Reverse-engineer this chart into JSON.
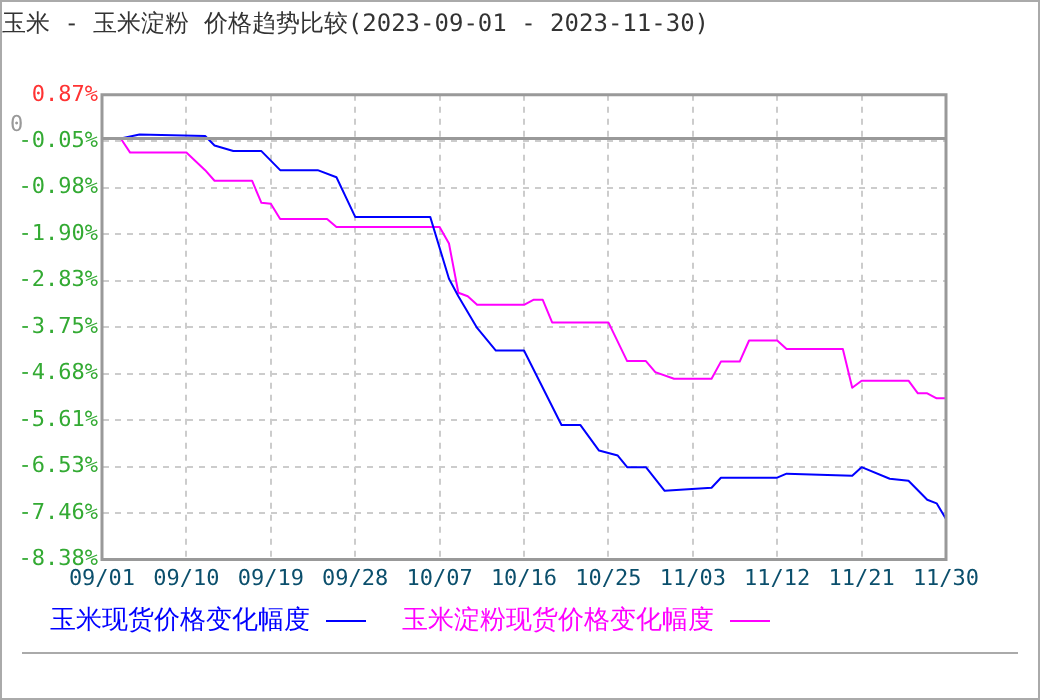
{
  "chart_data": {
    "type": "line",
    "title": "玉米 - 玉米淀粉 价格趋势比较(2023-09-01 - 2023-11-30)",
    "series": [
      {
        "name": "玉米现货价格变化幅度",
        "color": "#0000ff",
        "x": [
          "2023-09-01",
          "2023-09-03",
          "2023-09-05",
          "2023-09-12",
          "2023-09-13",
          "2023-09-15",
          "2023-09-18",
          "2023-09-20",
          "2023-09-24",
          "2023-09-26",
          "2023-09-28",
          "2023-10-06",
          "2023-10-08",
          "2023-10-09",
          "2023-10-11",
          "2023-10-13",
          "2023-10-16",
          "2023-10-20",
          "2023-10-22",
          "2023-10-24",
          "2023-10-26",
          "2023-10-27",
          "2023-10-29",
          "2023-10-31",
          "2023-11-05",
          "2023-11-06",
          "2023-11-12",
          "2023-11-13",
          "2023-11-20",
          "2023-11-21",
          "2023-11-24",
          "2023-11-26",
          "2023-11-28",
          "2023-11-29",
          "2023-11-30"
        ],
        "values": [
          0,
          0,
          0.08,
          0.05,
          -0.14,
          -0.25,
          -0.25,
          -0.63,
          -0.63,
          -0.77,
          -1.56,
          -1.56,
          -2.79,
          -3.14,
          -3.77,
          -4.22,
          -4.22,
          -5.7,
          -5.7,
          -6.21,
          -6.31,
          -6.54,
          -6.54,
          -7.01,
          -6.95,
          -6.75,
          -6.75,
          -6.67,
          -6.71,
          -6.54,
          -6.77,
          -6.81,
          -7.19,
          -7.26,
          -7.57
        ]
      },
      {
        "name": "玉米淀粉现货价格变化幅度",
        "color": "#ff00ff",
        "x": [
          "2023-09-01",
          "2023-09-03",
          "2023-09-04",
          "2023-09-10",
          "2023-09-12",
          "2023-09-13",
          "2023-09-17",
          "2023-09-18",
          "2023-09-19",
          "2023-09-20",
          "2023-09-25",
          "2023-09-26",
          "2023-10-07",
          "2023-10-08",
          "2023-10-09",
          "2023-10-10",
          "2023-10-11",
          "2023-10-16",
          "2023-10-17",
          "2023-10-18",
          "2023-10-19",
          "2023-10-25",
          "2023-10-27",
          "2023-10-29",
          "2023-10-30",
          "2023-11-01",
          "2023-11-05",
          "2023-11-06",
          "2023-11-08",
          "2023-11-09",
          "2023-11-12",
          "2023-11-13",
          "2023-11-19",
          "2023-11-20",
          "2023-11-21",
          "2023-11-26",
          "2023-11-27",
          "2023-11-28",
          "2023-11-29",
          "2023-11-30"
        ],
        "values": [
          0,
          0,
          -0.28,
          -0.28,
          -0.63,
          -0.84,
          -0.84,
          -1.28,
          -1.3,
          -1.6,
          -1.6,
          -1.76,
          -1.76,
          -2.09,
          -3.07,
          -3.14,
          -3.31,
          -3.31,
          -3.21,
          -3.21,
          -3.66,
          -3.66,
          -4.43,
          -4.43,
          -4.65,
          -4.78,
          -4.78,
          -4.44,
          -4.44,
          -4.02,
          -4.02,
          -4.19,
          -4.19,
          -4.96,
          -4.82,
          -4.82,
          -5.07,
          -5.07,
          -5.17,
          -5.17
        ]
      }
    ],
    "xlim": [
      "2023-09-01",
      "2023-11-30"
    ],
    "xticks": [
      {
        "value": "2023-09-01",
        "label": "09/01"
      },
      {
        "value": "2023-09-10",
        "label": "09/10"
      },
      {
        "value": "2023-09-19",
        "label": "09/19"
      },
      {
        "value": "2023-09-28",
        "label": "09/28"
      },
      {
        "value": "2023-10-07",
        "label": "10/07"
      },
      {
        "value": "2023-10-16",
        "label": "10/16"
      },
      {
        "value": "2023-10-25",
        "label": "10/25"
      },
      {
        "value": "2023-11-03",
        "label": "11/03"
      },
      {
        "value": "2023-11-12",
        "label": "11/12"
      },
      {
        "value": "2023-11-21",
        "label": "11/21"
      },
      {
        "value": "2023-11-30",
        "label": "11/30"
      }
    ],
    "ylim": [
      -8.38,
      0.87
    ],
    "yticks": [
      {
        "value": 0.87,
        "label": "0.87%"
      },
      {
        "value": -0.05,
        "label": "-0.05%"
      },
      {
        "value": -0.98,
        "label": "-0.98%"
      },
      {
        "value": -1.9,
        "label": "-1.90%"
      },
      {
        "value": -2.83,
        "label": "-2.83%"
      },
      {
        "value": -3.75,
        "label": "-3.75%"
      },
      {
        "value": -4.68,
        "label": "-4.68%"
      },
      {
        "value": -5.61,
        "label": "-5.61%"
      },
      {
        "value": -6.53,
        "label": "-6.53%"
      },
      {
        "value": -7.46,
        "label": "-7.46%"
      },
      {
        "value": -8.38,
        "label": "-8.38%"
      }
    ],
    "ref_lines": [
      {
        "axis": "y",
        "value": 0,
        "label": "0",
        "color": "#999999"
      }
    ],
    "grid": true,
    "legend": "bottom",
    "marker": "none",
    "line_style": "solid"
  }
}
